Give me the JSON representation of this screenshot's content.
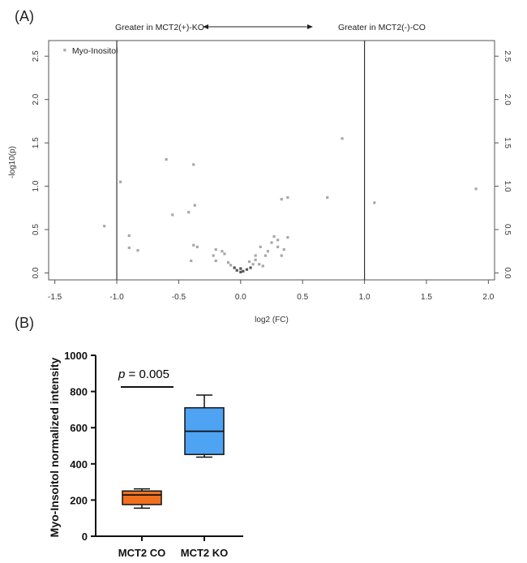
{
  "chart_data": [
    {
      "panel": "(A)",
      "type": "scatter",
      "header_left": "Greater in MCT2(+)-KO",
      "header_right": "Greater in MCT2(-)-CO",
      "xlabel": "log2 (FC)",
      "ylabel": "-log10(p)",
      "xlim": [
        -1.55,
        2.05
      ],
      "ylim": [
        -0.08,
        2.68
      ],
      "x_ticks": [
        "-1.5",
        "-1.0",
        "-0.5",
        "0.0",
        "0.5",
        "1.0",
        "1.5",
        "2.0"
      ],
      "y_ticks": [
        "0.0",
        "0.5",
        "1.0",
        "1.5",
        "2.0",
        "2.5"
      ],
      "vlines": [
        -1.0,
        1.0
      ],
      "annotation": {
        "label": "Myo-Inositol",
        "x": -1.42,
        "y": 2.57
      },
      "points": [
        [
          -1.42,
          2.57
        ],
        [
          -0.6,
          1.31
        ],
        [
          -0.38,
          1.25
        ],
        [
          -0.97,
          1.05
        ],
        [
          -0.37,
          0.78
        ],
        [
          -0.42,
          0.7
        ],
        [
          -0.55,
          0.67
        ],
        [
          -1.1,
          0.54
        ],
        [
          -0.9,
          0.43
        ],
        [
          -0.9,
          0.29
        ],
        [
          -0.83,
          0.26
        ],
        [
          -0.38,
          0.32
        ],
        [
          -0.35,
          0.3
        ],
        [
          -0.2,
          0.27
        ],
        [
          -0.15,
          0.25
        ],
        [
          -0.13,
          0.22
        ],
        [
          -0.22,
          0.2
        ],
        [
          -0.2,
          0.14
        ],
        [
          -0.4,
          0.14
        ],
        [
          -0.1,
          0.12
        ],
        [
          -0.05,
          0.06
        ],
        [
          -0.03,
          0.03
        ],
        [
          0.0,
          0.01
        ],
        [
          0.02,
          0.02
        ],
        [
          0.05,
          0.04
        ],
        [
          0.08,
          0.06
        ],
        [
          0.1,
          0.1
        ],
        [
          0.12,
          0.15
        ],
        [
          0.15,
          0.1
        ],
        [
          0.18,
          0.08
        ],
        [
          0.2,
          0.2
        ],
        [
          0.16,
          0.3
        ],
        [
          0.22,
          0.25
        ],
        [
          0.25,
          0.35
        ],
        [
          0.27,
          0.42
        ],
        [
          0.3,
          0.3
        ],
        [
          0.3,
          0.38
        ],
        [
          0.33,
          0.2
        ],
        [
          0.35,
          0.27
        ],
        [
          0.38,
          0.41
        ],
        [
          0.33,
          0.85
        ],
        [
          0.38,
          0.87
        ],
        [
          0.7,
          0.87
        ],
        [
          0.82,
          1.55
        ],
        [
          1.08,
          0.81
        ],
        [
          1.9,
          0.97
        ],
        [
          0.12,
          0.2
        ],
        [
          0.07,
          0.13
        ],
        [
          -0.08,
          0.09
        ],
        [
          0.0,
          0.05
        ]
      ]
    },
    {
      "panel": "(B)",
      "type": "box",
      "ylabel": "Myo-Insoitol normalized intensity",
      "ylim": [
        0,
        1000
      ],
      "y_ticks": [
        "0",
        "200",
        "400",
        "600",
        "800",
        "1000"
      ],
      "significance": {
        "prefix": "p",
        "text": " = 0.005"
      },
      "groups": [
        {
          "name": "MCT2 CO",
          "color": "#f07020",
          "min": 155,
          "q1": 175,
          "median": 228,
          "q3": 250,
          "max": 262
        },
        {
          "name": "MCT2 KO",
          "color": "#4ea3f2",
          "min": 437,
          "q1": 452,
          "median": 580,
          "q3": 710,
          "max": 780
        }
      ]
    }
  ]
}
